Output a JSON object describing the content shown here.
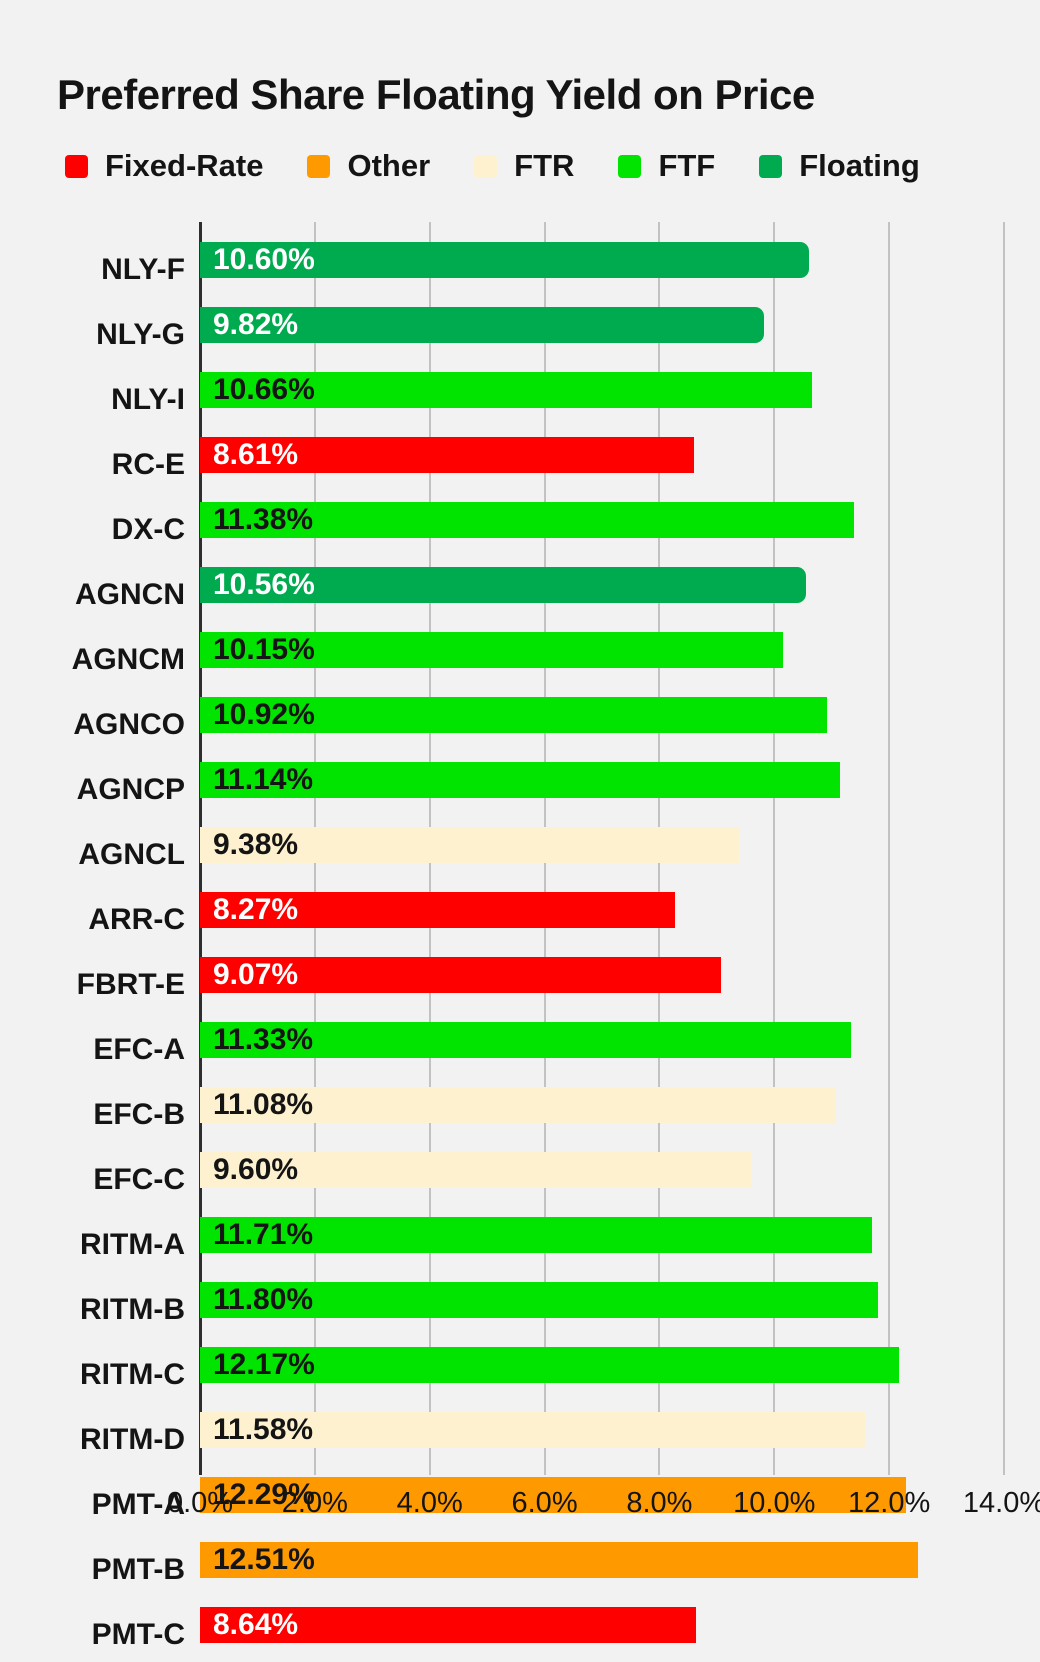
{
  "title": "Preferred Share Floating Yield on Price",
  "colors": {
    "fixed": "#fe0000",
    "other": "#fe9900",
    "ftr": "#fdf1cf",
    "ftf": "#00e400",
    "floating": "#00ab50",
    "background": "#f2f2f2",
    "gridline": "#c2c2c2",
    "axis_line": "#2e2e2e",
    "text": "#141414"
  },
  "legend": {
    "items": [
      {
        "label": "Fixed-Rate",
        "series": "fixed"
      },
      {
        "label": "Other",
        "series": "other"
      },
      {
        "label": "FTR",
        "series": "ftr"
      },
      {
        "label": "FTF",
        "series": "ftf"
      },
      {
        "label": "Floating",
        "series": "floating"
      }
    ]
  },
  "chart_data": {
    "type": "bar",
    "orientation": "horizontal",
    "title": "Preferred Share Floating Yield on Price",
    "xlabel": "",
    "ylabel": "",
    "xlim": [
      0,
      14
    ],
    "grid": "vertical, every 2%",
    "legend_position": "top",
    "x_ticks": [
      {
        "label": "0.0%",
        "value": 0
      },
      {
        "label": "2.0%",
        "value": 2
      },
      {
        "label": "4.0%",
        "value": 4
      },
      {
        "label": "6.0%",
        "value": 6
      },
      {
        "label": "8.0%",
        "value": 8
      },
      {
        "label": "10.0%",
        "value": 10
      },
      {
        "label": "12.0%",
        "value": 12
      },
      {
        "label": "14.0%",
        "value": 14
      }
    ],
    "bars": [
      {
        "category": "NLY-F",
        "value": 10.6,
        "display": "10.60%",
        "series": "floating"
      },
      {
        "category": "NLY-G",
        "value": 9.82,
        "display": "9.82%",
        "series": "floating"
      },
      {
        "category": "NLY-I",
        "value": 10.66,
        "display": "10.66%",
        "series": "ftf"
      },
      {
        "category": "RC-E",
        "value": 8.61,
        "display": "8.61%",
        "series": "fixed"
      },
      {
        "category": "DX-C",
        "value": 11.38,
        "display": "11.38%",
        "series": "ftf"
      },
      {
        "category": "AGNCN",
        "value": 10.56,
        "display": "10.56%",
        "series": "floating"
      },
      {
        "category": "AGNCM",
        "value": 10.15,
        "display": "10.15%",
        "series": "ftf"
      },
      {
        "category": "AGNCO",
        "value": 10.92,
        "display": "10.92%",
        "series": "ftf"
      },
      {
        "category": "AGNCP",
        "value": 11.14,
        "display": "11.14%",
        "series": "ftf"
      },
      {
        "category": "AGNCL",
        "value": 9.38,
        "display": "9.38%",
        "series": "ftr"
      },
      {
        "category": "ARR-C",
        "value": 8.27,
        "display": "8.27%",
        "series": "fixed"
      },
      {
        "category": "FBRT-E",
        "value": 9.07,
        "display": "9.07%",
        "series": "fixed"
      },
      {
        "category": "EFC-A",
        "value": 11.33,
        "display": "11.33%",
        "series": "ftf"
      },
      {
        "category": "EFC-B",
        "value": 11.08,
        "display": "11.08%",
        "series": "ftr"
      },
      {
        "category": "EFC-C",
        "value": 9.6,
        "display": "9.60%",
        "series": "ftr"
      },
      {
        "category": "RITM-A",
        "value": 11.71,
        "display": "11.71%",
        "series": "ftf"
      },
      {
        "category": "RITM-B",
        "value": 11.8,
        "display": "11.80%",
        "series": "ftf"
      },
      {
        "category": "RITM-C",
        "value": 12.17,
        "display": "12.17%",
        "series": "ftf"
      },
      {
        "category": "RITM-D",
        "value": 11.58,
        "display": "11.58%",
        "series": "ftr"
      },
      {
        "category": "PMT-A",
        "value": 12.29,
        "display": "12.29%",
        "series": "other"
      },
      {
        "category": "PMT-B",
        "value": 12.51,
        "display": "12.51%",
        "series": "other"
      },
      {
        "category": "PMT-C",
        "value": 8.64,
        "display": "8.64%",
        "series": "fixed"
      }
    ]
  }
}
